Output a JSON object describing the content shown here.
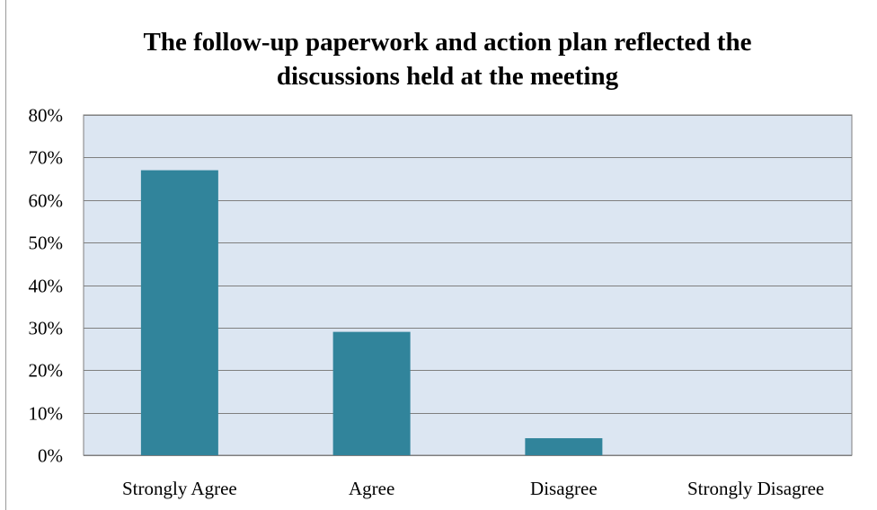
{
  "chart_data": {
    "type": "bar",
    "title_lines": [
      "The follow-up  paperwork  and action plan reflected the",
      "discussions held at the meeting"
    ],
    "categories": [
      "Strongly Agree",
      "Agree",
      "Disagree",
      "Strongly Disagree"
    ],
    "values": [
      67,
      29,
      4,
      0
    ],
    "value_unit": "%",
    "ylim": [
      0,
      80
    ],
    "yticks": [
      "0%",
      "10%",
      "20%",
      "30%",
      "40%",
      "50%",
      "60%",
      "70%",
      "80%"
    ],
    "grid": true,
    "legend": "none",
    "colors": {
      "bar": "#31849B",
      "plot_background": "#DCE6F2",
      "gridline": "#7F7F7F"
    }
  }
}
